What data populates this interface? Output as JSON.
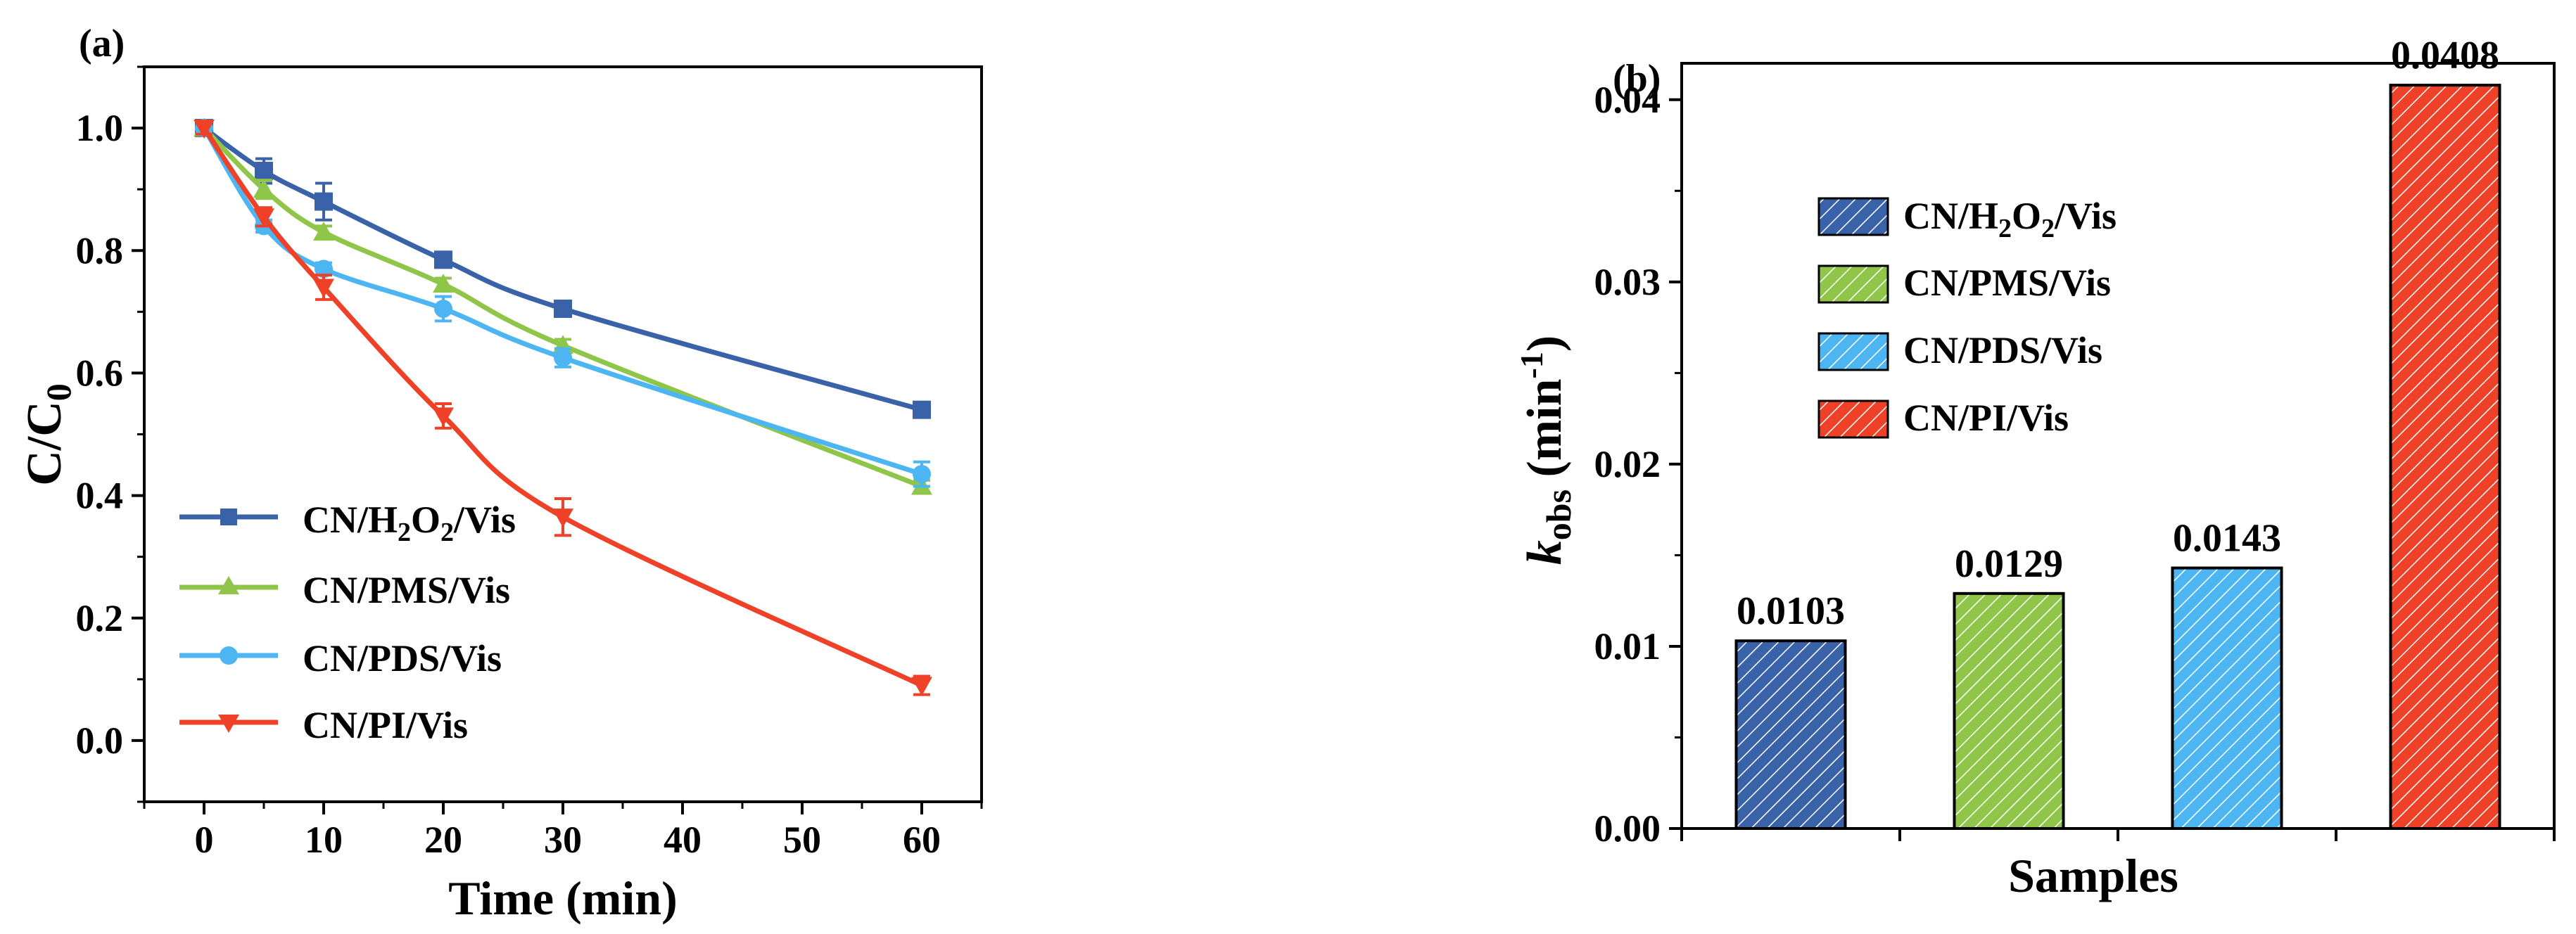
{
  "colors": {
    "h2o2": "#3a62a8",
    "pms": "#8fc64a",
    "pds": "#4db6f2",
    "pi": "#ee4127",
    "axis": "#000000"
  },
  "chart_data": [
    {
      "type": "line",
      "panel_label": "(a)",
      "xlabel": "Time (min)",
      "ylabel_main": "C/C",
      "ylabel_sub": "0",
      "x_ticks": [
        "0",
        "10",
        "20",
        "30",
        "40",
        "50",
        "60"
      ],
      "y_ticks": [
        "0.0",
        "0.2",
        "0.4",
        "0.6",
        "0.8",
        "1.0"
      ],
      "xlim": [
        -5,
        65
      ],
      "ylim": [
        -0.1,
        1.1
      ],
      "legend_position": "bottom-left",
      "series": [
        {
          "key": "h2o2",
          "legend_main": "CN/H",
          "legend_sub1": "2",
          "legend_mid": "O",
          "legend_sub2": "2",
          "legend_tail": "/Vis",
          "marker": "square",
          "x": [
            0,
            5,
            10,
            20,
            30,
            60
          ],
          "y": [
            1.0,
            0.93,
            0.88,
            0.785,
            0.705,
            0.54
          ],
          "err": [
            0.01,
            0.02,
            0.03,
            0.01,
            0.01,
            0.01
          ]
        },
        {
          "key": "pms",
          "legend_main": "CN/PMS/Vis",
          "marker": "triangle-up",
          "x": [
            0,
            5,
            10,
            20,
            30,
            60
          ],
          "y": [
            1.0,
            0.9,
            0.83,
            0.745,
            0.645,
            0.415
          ],
          "err": [
            0.01,
            0.015,
            0.01,
            0.01,
            0.01,
            0.01
          ]
        },
        {
          "key": "pds",
          "legend_main": "CN/PDS/Vis",
          "marker": "circle",
          "x": [
            0,
            5,
            10,
            20,
            30,
            60
          ],
          "y": [
            1.0,
            0.84,
            0.77,
            0.705,
            0.625,
            0.435
          ],
          "err": [
            0.01,
            0.01,
            0.01,
            0.02,
            0.015,
            0.02
          ]
        },
        {
          "key": "pi",
          "legend_main": "CN/PI/Vis",
          "marker": "triangle-down",
          "x": [
            0,
            5,
            10,
            20,
            30,
            60
          ],
          "y": [
            1.0,
            0.855,
            0.74,
            0.53,
            0.365,
            0.09
          ],
          "err": [
            0.01,
            0.015,
            0.02,
            0.02,
            0.03,
            0.015
          ]
        }
      ]
    },
    {
      "type": "bar",
      "panel_label": "(b)",
      "xlabel": "Samples",
      "ylabel_k": "k",
      "ylabel_sub": "obs",
      "ylabel_unit_a": " (min",
      "ylabel_sup": "-1",
      "ylabel_unit_b": ")",
      "y_ticks": [
        "0.00",
        "0.01",
        "0.02",
        "0.03",
        "0.04"
      ],
      "ylim": [
        0,
        0.042
      ],
      "legend_position": "top-left",
      "categories": [
        "CN/H2O2/Vis",
        "CN/PMS/Vis",
        "CN/PDS/Vis",
        "CN/PI/Vis"
      ],
      "values": [
        0.0103,
        0.0129,
        0.0143,
        0.0408
      ],
      "value_labels": [
        "0.0103",
        "0.0129",
        "0.0143",
        "0.0408"
      ],
      "bar_keys": [
        "h2o2",
        "pms",
        "pds",
        "pi"
      ],
      "legend": [
        {
          "key": "h2o2",
          "legend_main": "CN/H",
          "legend_sub1": "2",
          "legend_mid": "O",
          "legend_sub2": "2",
          "legend_tail": "/Vis"
        },
        {
          "key": "pms",
          "legend_main": "CN/PMS/Vis"
        },
        {
          "key": "pds",
          "legend_main": "CN/PDS/Vis"
        },
        {
          "key": "pi",
          "legend_main": "CN/PI/Vis"
        }
      ]
    }
  ]
}
